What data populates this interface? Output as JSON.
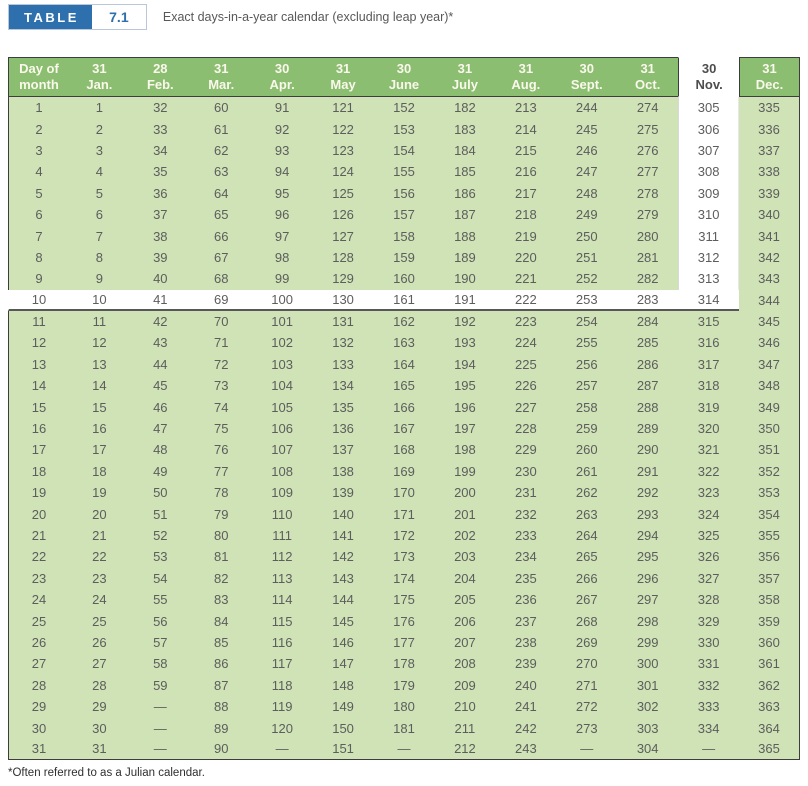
{
  "caption": {
    "table_label": "TABLE",
    "table_number": "7.1",
    "title": "Exact days-in-a-year calendar (excluding leap year)*"
  },
  "footnote": "*Often referred to as a Julian calendar.",
  "colors": {
    "badge_blue": "#2e6fae",
    "header_green": "#8cbe71",
    "body_green": "#cfe3b6",
    "border_dark": "#3d3d3d",
    "highlight_white": "#ffffff"
  },
  "table": {
    "corner_header": {
      "line1": "Day of",
      "line2": "month"
    },
    "months": [
      {
        "days": "31",
        "name": "Jan."
      },
      {
        "days": "28",
        "name": "Feb."
      },
      {
        "days": "31",
        "name": "Mar."
      },
      {
        "days": "30",
        "name": "Apr."
      },
      {
        "days": "31",
        "name": "May"
      },
      {
        "days": "30",
        "name": "June"
      },
      {
        "days": "31",
        "name": "July"
      },
      {
        "days": "31",
        "name": "Aug."
      },
      {
        "days": "30",
        "name": "Sept."
      },
      {
        "days": "31",
        "name": "Oct."
      },
      {
        "days": "30",
        "name": "Nov."
      },
      {
        "days": "31",
        "name": "Dec."
      }
    ],
    "highlight": {
      "row_day": 10,
      "column_month": "Nov.",
      "intersection_value": "314"
    },
    "rows": [
      {
        "day": "1",
        "values": [
          "1",
          "32",
          "60",
          "91",
          "121",
          "152",
          "182",
          "213",
          "244",
          "274",
          "305",
          "335"
        ]
      },
      {
        "day": "2",
        "values": [
          "2",
          "33",
          "61",
          "92",
          "122",
          "153",
          "183",
          "214",
          "245",
          "275",
          "306",
          "336"
        ]
      },
      {
        "day": "3",
        "values": [
          "3",
          "34",
          "62",
          "93",
          "123",
          "154",
          "184",
          "215",
          "246",
          "276",
          "307",
          "337"
        ]
      },
      {
        "day": "4",
        "values": [
          "4",
          "35",
          "63",
          "94",
          "124",
          "155",
          "185",
          "216",
          "247",
          "277",
          "308",
          "338"
        ]
      },
      {
        "day": "5",
        "values": [
          "5",
          "36",
          "64",
          "95",
          "125",
          "156",
          "186",
          "217",
          "248",
          "278",
          "309",
          "339"
        ]
      },
      {
        "day": "6",
        "values": [
          "6",
          "37",
          "65",
          "96",
          "126",
          "157",
          "187",
          "218",
          "249",
          "279",
          "310",
          "340"
        ]
      },
      {
        "day": "7",
        "values": [
          "7",
          "38",
          "66",
          "97",
          "127",
          "158",
          "188",
          "219",
          "250",
          "280",
          "311",
          "341"
        ]
      },
      {
        "day": "8",
        "values": [
          "8",
          "39",
          "67",
          "98",
          "128",
          "159",
          "189",
          "220",
          "251",
          "281",
          "312",
          "342"
        ]
      },
      {
        "day": "9",
        "values": [
          "9",
          "40",
          "68",
          "99",
          "129",
          "160",
          "190",
          "221",
          "252",
          "282",
          "313",
          "343"
        ]
      },
      {
        "day": "10",
        "values": [
          "10",
          "41",
          "69",
          "100",
          "130",
          "161",
          "191",
          "222",
          "253",
          "283",
          "314",
          "344"
        ]
      },
      {
        "day": "11",
        "values": [
          "11",
          "42",
          "70",
          "101",
          "131",
          "162",
          "192",
          "223",
          "254",
          "284",
          "315",
          "345"
        ]
      },
      {
        "day": "12",
        "values": [
          "12",
          "43",
          "71",
          "102",
          "132",
          "163",
          "193",
          "224",
          "255",
          "285",
          "316",
          "346"
        ]
      },
      {
        "day": "13",
        "values": [
          "13",
          "44",
          "72",
          "103",
          "133",
          "164",
          "194",
          "225",
          "256",
          "286",
          "317",
          "347"
        ]
      },
      {
        "day": "14",
        "values": [
          "14",
          "45",
          "73",
          "104",
          "134",
          "165",
          "195",
          "226",
          "257",
          "287",
          "318",
          "348"
        ]
      },
      {
        "day": "15",
        "values": [
          "15",
          "46",
          "74",
          "105",
          "135",
          "166",
          "196",
          "227",
          "258",
          "288",
          "319",
          "349"
        ]
      },
      {
        "day": "16",
        "values": [
          "16",
          "47",
          "75",
          "106",
          "136",
          "167",
          "197",
          "228",
          "259",
          "289",
          "320",
          "350"
        ]
      },
      {
        "day": "17",
        "values": [
          "17",
          "48",
          "76",
          "107",
          "137",
          "168",
          "198",
          "229",
          "260",
          "290",
          "321",
          "351"
        ]
      },
      {
        "day": "18",
        "values": [
          "18",
          "49",
          "77",
          "108",
          "138",
          "169",
          "199",
          "230",
          "261",
          "291",
          "322",
          "352"
        ]
      },
      {
        "day": "19",
        "values": [
          "19",
          "50",
          "78",
          "109",
          "139",
          "170",
          "200",
          "231",
          "262",
          "292",
          "323",
          "353"
        ]
      },
      {
        "day": "20",
        "values": [
          "20",
          "51",
          "79",
          "110",
          "140",
          "171",
          "201",
          "232",
          "263",
          "293",
          "324",
          "354"
        ]
      },
      {
        "day": "21",
        "values": [
          "21",
          "52",
          "80",
          "111",
          "141",
          "172",
          "202",
          "233",
          "264",
          "294",
          "325",
          "355"
        ]
      },
      {
        "day": "22",
        "values": [
          "22",
          "53",
          "81",
          "112",
          "142",
          "173",
          "203",
          "234",
          "265",
          "295",
          "326",
          "356"
        ]
      },
      {
        "day": "23",
        "values": [
          "23",
          "54",
          "82",
          "113",
          "143",
          "174",
          "204",
          "235",
          "266",
          "296",
          "327",
          "357"
        ]
      },
      {
        "day": "24",
        "values": [
          "24",
          "55",
          "83",
          "114",
          "144",
          "175",
          "205",
          "236",
          "267",
          "297",
          "328",
          "358"
        ]
      },
      {
        "day": "25",
        "values": [
          "25",
          "56",
          "84",
          "115",
          "145",
          "176",
          "206",
          "237",
          "268",
          "298",
          "329",
          "359"
        ]
      },
      {
        "day": "26",
        "values": [
          "26",
          "57",
          "85",
          "116",
          "146",
          "177",
          "207",
          "238",
          "269",
          "299",
          "330",
          "360"
        ]
      },
      {
        "day": "27",
        "values": [
          "27",
          "58",
          "86",
          "117",
          "147",
          "178",
          "208",
          "239",
          "270",
          "300",
          "331",
          "361"
        ]
      },
      {
        "day": "28",
        "values": [
          "28",
          "59",
          "87",
          "118",
          "148",
          "179",
          "209",
          "240",
          "271",
          "301",
          "332",
          "362"
        ]
      },
      {
        "day": "29",
        "values": [
          "29",
          "—",
          "88",
          "119",
          "149",
          "180",
          "210",
          "241",
          "272",
          "302",
          "333",
          "363"
        ]
      },
      {
        "day": "30",
        "values": [
          "30",
          "—",
          "89",
          "120",
          "150",
          "181",
          "211",
          "242",
          "273",
          "303",
          "334",
          "364"
        ]
      },
      {
        "day": "31",
        "values": [
          "31",
          "—",
          "90",
          "—",
          "151",
          "—",
          "212",
          "243",
          "—",
          "304",
          "—",
          "365"
        ]
      }
    ]
  }
}
